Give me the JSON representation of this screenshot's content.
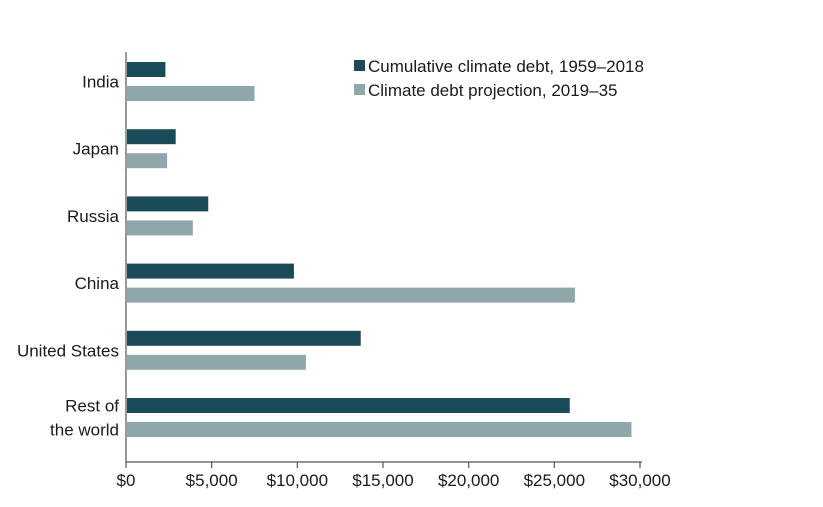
{
  "chart_data": {
    "type": "bar",
    "orientation": "horizontal",
    "categories": [
      "India",
      "Japan",
      "Russia",
      "China",
      "United States",
      "Rest of the world"
    ],
    "category_label_lines": [
      [
        "India"
      ],
      [
        "Japan"
      ],
      [
        "Russia"
      ],
      [
        "China"
      ],
      [
        "United States"
      ],
      [
        "Rest of",
        "the world"
      ]
    ],
    "series": [
      {
        "name": "Cumulative climate debt, 1959–2018",
        "color": "#1b4a58",
        "values": [
          2300,
          2900,
          4800,
          9800,
          13700,
          25900
        ]
      },
      {
        "name": "Climate debt projection, 2019–35",
        "color": "#8fa6ab",
        "values": [
          7500,
          2400,
          3900,
          26200,
          10500,
          29500
        ]
      }
    ],
    "x_ticks": [
      "$0",
      "$5,000",
      "$10,000",
      "$15,000",
      "$20,000",
      "$25,000",
      "$30,000"
    ],
    "xlim": [
      0,
      30000
    ],
    "legend": "top-right",
    "grid": false
  }
}
